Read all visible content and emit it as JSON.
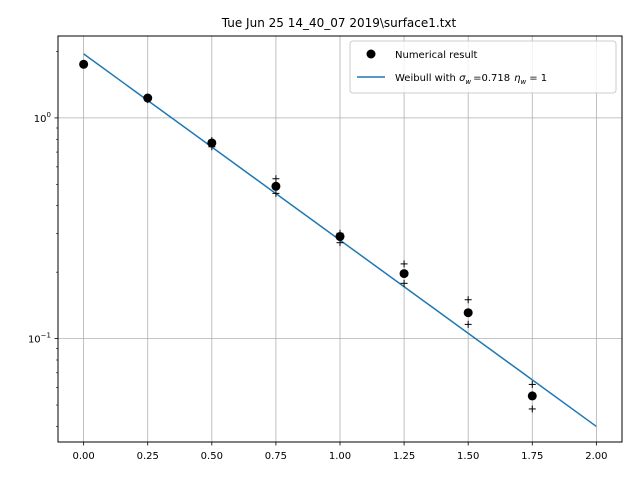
{
  "chart_data": {
    "type": "scatter",
    "title": "Tue Jun 25 14_40_07 2019\\surface1.txt",
    "xlabel": "",
    "ylabel": "",
    "y_scale": "log",
    "xlim": [
      -0.1,
      2.1
    ],
    "ylim": [
      0.034,
      2.35
    ],
    "grid": true,
    "legend_position": "top-right",
    "x_ticks": [
      0.0,
      0.25,
      0.5,
      0.75,
      1.0,
      1.25,
      1.5,
      1.75,
      2.0
    ],
    "x_tick_labels": [
      "0.00",
      "0.25",
      "0.50",
      "0.75",
      "1.00",
      "1.25",
      "1.50",
      "1.75",
      "2.00"
    ],
    "y_major_ticks": [
      0.1,
      1.0
    ],
    "y_minor_ticks": [
      0.04,
      0.05,
      0.06,
      0.07,
      0.08,
      0.09,
      0.2,
      0.3,
      0.4,
      0.5,
      0.6,
      0.7,
      0.8,
      0.9,
      2.0
    ],
    "series": [
      {
        "name": "Numerical result",
        "kind": "scatter",
        "color": "#000000",
        "marker": "circle",
        "x": [
          0.0,
          0.25,
          0.5,
          0.75,
          1.0,
          1.25,
          1.5,
          1.75
        ],
        "y": [
          1.75,
          1.23,
          0.77,
          0.49,
          0.29,
          0.197,
          0.131,
          0.055
        ],
        "y_upper": [
          1.75,
          1.24,
          0.79,
          0.53,
          0.3,
          0.218,
          0.15,
          0.062
        ],
        "y_lower": [
          1.74,
          1.21,
          0.74,
          0.455,
          0.272,
          0.178,
          0.116,
          0.048
        ]
      },
      {
        "name": "Weibull with",
        "kind": "line",
        "color": "#1f77b4",
        "x": [
          0.0,
          2.0
        ],
        "y": [
          1.95,
          0.04
        ]
      }
    ],
    "legend": {
      "entry1": "Numerical result",
      "entry2_prefix": "Weibull with ",
      "sigma_symbol": "σ",
      "sigma_sub": "w",
      "sigma_value": "=0.718",
      "eta_symbol": "η",
      "eta_sub": "w",
      "eta_value": "= 1"
    }
  }
}
